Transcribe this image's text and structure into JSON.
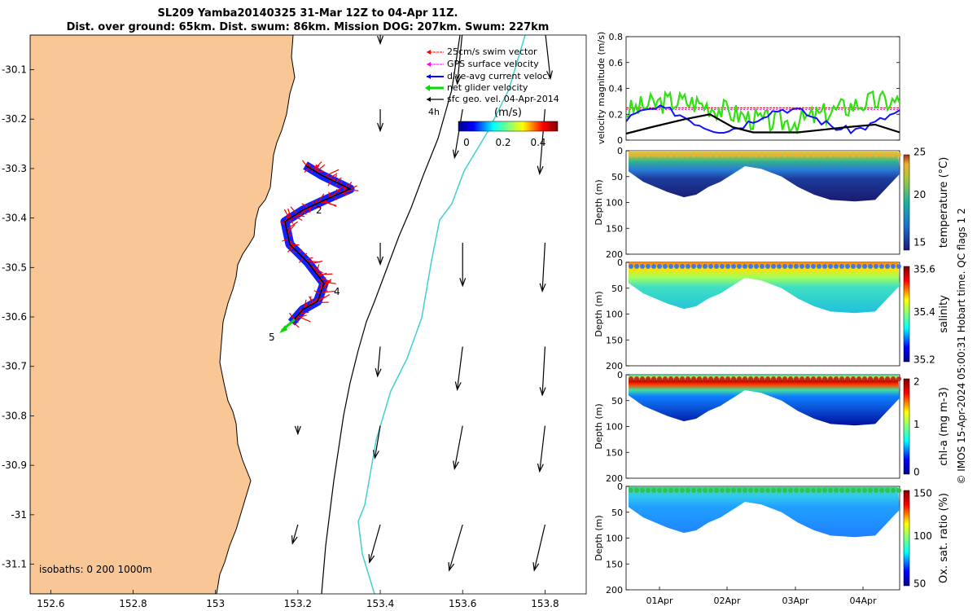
{
  "header": {
    "title_line1": "SL209 Yamba20140325 31-Mar 12Z to 04-Apr 11Z.",
    "title_line2": "Dist. over ground: 65km. Dist. swum: 86km. Mission DOG: 207km. Swum: 227km"
  },
  "map": {
    "x_ticks": [
      "152.6",
      "152.8",
      "153",
      "153.2",
      "153.4",
      "153.6",
      "153.8"
    ],
    "y_ticks": [
      "-30.1",
      "-30.2",
      "-30.3",
      "-30.4",
      "-30.5",
      "-30.6",
      "-30.7",
      "-30.8",
      "-30.9",
      "-31",
      "-31.1"
    ],
    "xlim": [
      152.55,
      153.9
    ],
    "ylim": [
      -31.16,
      -30.03
    ],
    "land_color": "#f9c796",
    "isobaths_label": "isobaths: 0   200  1000m",
    "legend": [
      {
        "label": "25cm/s swim vector",
        "color": "#ff0000"
      },
      {
        "label": "GPS surface velocity",
        "color": "#ff00ff"
      },
      {
        "label": "dive-avg current veloc.",
        "color": "#0000ff"
      },
      {
        "label": "net glider velocity",
        "color": "#00dd00"
      },
      {
        "label": "sfc geo. vel. 04-Apr-2014",
        "color": "#000000"
      }
    ],
    "scale_label": "4h",
    "colorbar": {
      "title": "(m/s)",
      "ticks": [
        "0",
        "0.2",
        "0.4"
      ]
    },
    "track_labels": [
      "2",
      "4",
      "5"
    ],
    "track": [
      [
        153.27,
        -30.47
      ],
      [
        153.25,
        -30.43
      ],
      [
        153.24,
        -30.44
      ],
      [
        153.25,
        -30.48
      ],
      [
        153.3,
        -30.52
      ],
      [
        153.33,
        -30.57
      ],
      [
        153.25,
        -30.58
      ],
      [
        153.2,
        -30.62
      ],
      [
        153.16,
        -30.64
      ]
    ],
    "geo_vectors": [
      {
        "lon": 153.4,
        "lat": -30.02,
        "u": 0,
        "v": -0.05
      },
      {
        "lon": 153.6,
        "lat": -30.02,
        "u": -0.02,
        "v": -0.2
      },
      {
        "lon": 153.8,
        "lat": -30.02,
        "u": 0.02,
        "v": -0.18
      },
      {
        "lon": 153.4,
        "lat": -30.18,
        "u": 0,
        "v": -0.08
      },
      {
        "lon": 153.6,
        "lat": -30.18,
        "u": -0.03,
        "v": -0.18
      },
      {
        "lon": 153.8,
        "lat": -30.18,
        "u": -0.02,
        "v": -0.24
      },
      {
        "lon": 153.4,
        "lat": -30.45,
        "u": 0,
        "v": -0.08
      },
      {
        "lon": 153.6,
        "lat": -30.45,
        "u": 0,
        "v": -0.16
      },
      {
        "lon": 153.8,
        "lat": -30.45,
        "u": -0.01,
        "v": -0.18
      },
      {
        "lon": 153.4,
        "lat": -30.66,
        "u": -0.01,
        "v": -0.11
      },
      {
        "lon": 153.6,
        "lat": -30.66,
        "u": -0.02,
        "v": -0.16
      },
      {
        "lon": 153.8,
        "lat": -30.66,
        "u": -0.01,
        "v": -0.18
      },
      {
        "lon": 153.2,
        "lat": -30.82,
        "u": 0,
        "v": -0.03
      },
      {
        "lon": 153.4,
        "lat": -30.82,
        "u": -0.02,
        "v": -0.12
      },
      {
        "lon": 153.6,
        "lat": -30.82,
        "u": -0.03,
        "v": -0.16
      },
      {
        "lon": 153.8,
        "lat": -30.82,
        "u": -0.02,
        "v": -0.17
      },
      {
        "lon": 153.2,
        "lat": -31.02,
        "u": -0.02,
        "v": -0.07
      },
      {
        "lon": 153.4,
        "lat": -31.02,
        "u": -0.04,
        "v": -0.14
      },
      {
        "lon": 153.6,
        "lat": -31.02,
        "u": -0.05,
        "v": -0.17
      },
      {
        "lon": 153.8,
        "lat": -31.02,
        "u": -0.04,
        "v": -0.17
      }
    ]
  },
  "velocity_panel": {
    "ylabel": "velocity magnitude (m/s)",
    "ylim": [
      0,
      0.8
    ],
    "y_ticks": [
      "0",
      "0.2",
      "0.4",
      "0.6",
      "0.8"
    ],
    "swim_ref": 0.25
  },
  "sections": [
    {
      "ylabel": "Depth (m)",
      "cbar_label": "temperature (°C)",
      "cbar_ticks": [
        "15",
        "20",
        "25"
      ],
      "colormap": "parula"
    },
    {
      "ylabel": "Depth (m)",
      "cbar_label": "salinity",
      "cbar_ticks": [
        "35.2",
        "35.4",
        "35.6"
      ],
      "colormap": "jet"
    },
    {
      "ylabel": "Depth (m)",
      "cbar_label": "chl-a (mg m-3)",
      "cbar_ticks": [
        "0",
        "1",
        "2"
      ],
      "colormap": "jet"
    },
    {
      "ylabel": "Depth (m)",
      "cbar_label": "Ox. sat. ratio (%)",
      "cbar_ticks": [
        "50",
        "100",
        "150"
      ],
      "colormap": "jet"
    }
  ],
  "depth_ticks": [
    "0",
    "50",
    "100",
    "150",
    "200"
  ],
  "time_ticks": [
    "01Apr",
    "02Apr",
    "03Apr",
    "04Apr"
  ],
  "credit": "© IMOS 15-Apr-2024 05:00:31 Hobart time. QC flags 1  2",
  "chart_data": {
    "type": "line",
    "title": "SL209 Yamba20140325 31-Mar 12Z to 04-Apr 11Z.",
    "x": [
      "01Apr",
      "02Apr",
      "03Apr",
      "04Apr"
    ],
    "series": [],
    "ylabel": "velocity magnitude (m/s)",
    "ylim": [
      0,
      0.8
    ]
  }
}
